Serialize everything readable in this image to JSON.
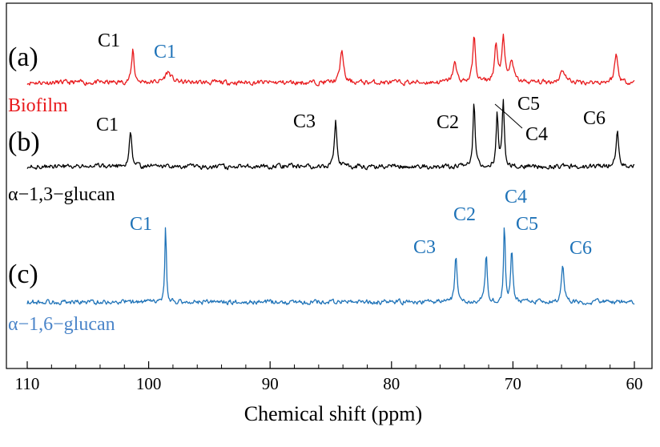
{
  "chart_data": {
    "type": "line",
    "title": "",
    "xlabel": "Chemical shift (ppm)",
    "ylabel": "",
    "xlim": [
      110,
      60
    ],
    "x_ticks": [
      110,
      100,
      90,
      80,
      70,
      60
    ],
    "x_tick_labels": [
      "110",
      "100",
      "90",
      "80",
      "70",
      "60"
    ],
    "colors": {
      "a": "#e8191c",
      "b": "#000000",
      "c": "#1f73b8",
      "axis": "#000000"
    },
    "series": [
      {
        "id": "a",
        "tag": "(a)",
        "name": "Biofilm",
        "name_color": "#e8191c",
        "baseline": 0,
        "noise": 0.06,
        "peaks": [
          {
            "ppm": 101.3,
            "height": 0.95,
            "width": 0.12,
            "label": "C1",
            "label_color": "#000000"
          },
          {
            "ppm": 98.4,
            "height": 0.3,
            "width": 0.3,
            "label": "C1",
            "label_color": "#1f73b8"
          },
          {
            "ppm": 84.1,
            "height": 0.95,
            "width": 0.15
          },
          {
            "ppm": 74.8,
            "height": 0.55,
            "width": 0.18
          },
          {
            "ppm": 73.2,
            "height": 1.3,
            "width": 0.13
          },
          {
            "ppm": 71.4,
            "height": 1.05,
            "width": 0.14
          },
          {
            "ppm": 70.8,
            "height": 1.25,
            "width": 0.14
          },
          {
            "ppm": 70.1,
            "height": 0.6,
            "width": 0.18
          },
          {
            "ppm": 65.9,
            "height": 0.35,
            "width": 0.25
          },
          {
            "ppm": 61.5,
            "height": 0.8,
            "width": 0.16
          }
        ]
      },
      {
        "id": "b",
        "tag": "(b)",
        "name": "α−1,3−glucan",
        "name_color": "#000000",
        "baseline": 0,
        "noise": 0.06,
        "peaks": [
          {
            "ppm": 101.5,
            "height": 0.95,
            "width": 0.13,
            "label": "C1"
          },
          {
            "ppm": 84.6,
            "height": 1.35,
            "width": 0.12,
            "label": "C3"
          },
          {
            "ppm": 73.2,
            "height": 1.85,
            "width": 0.1,
            "label": "C2"
          },
          {
            "ppm": 71.3,
            "height": 1.5,
            "width": 0.1,
            "label": "C5"
          },
          {
            "ppm": 70.8,
            "height": 1.85,
            "width": 0.1,
            "label": "C4"
          },
          {
            "ppm": 61.4,
            "height": 1.1,
            "width": 0.12,
            "label": "C6"
          }
        ]
      },
      {
        "id": "c",
        "tag": "(c)",
        "name": "α−1,6−glucan",
        "name_color": "#4b85c9",
        "baseline": 0,
        "noise": 0.06,
        "peaks": [
          {
            "ppm": 98.6,
            "height": 2.2,
            "width": 0.07,
            "label": "C1"
          },
          {
            "ppm": 74.7,
            "height": 1.3,
            "width": 0.11,
            "label": "C3"
          },
          {
            "ppm": 72.2,
            "height": 1.4,
            "width": 0.1,
            "label": "C2"
          },
          {
            "ppm": 70.7,
            "height": 2.25,
            "width": 0.08,
            "label": "C4"
          },
          {
            "ppm": 70.1,
            "height": 1.5,
            "width": 0.1,
            "label": "C5"
          },
          {
            "ppm": 65.9,
            "height": 1.0,
            "width": 0.14,
            "label": "C6"
          }
        ]
      }
    ]
  }
}
